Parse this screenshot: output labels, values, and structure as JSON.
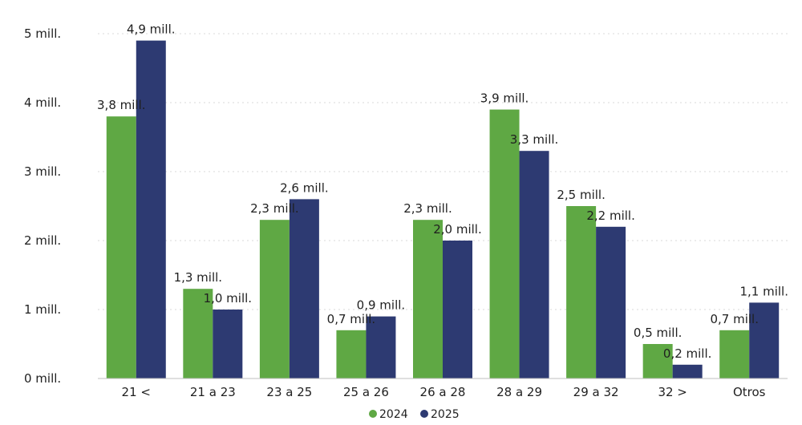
{
  "chart_data": {
    "type": "bar",
    "categories": [
      "21 <",
      "21 a 23",
      "23 a 25",
      "25 a 26",
      "26 a 28",
      "28 a 29",
      "29 a 32",
      "32 >",
      "Otros"
    ],
    "series": [
      {
        "name": "2024",
        "color": "#5fa844",
        "values": [
          3.8,
          1.3,
          2.3,
          0.7,
          2.3,
          3.9,
          2.5,
          0.5,
          0.7
        ],
        "labels": [
          "3,8 mill.",
          "1,3 mill.",
          "2,3 mill.",
          "0,7 mill.",
          "2,3 mill.",
          "3,9 mill.",
          "2,5 mill.",
          "0,5 mill.",
          "0,7 mill."
        ]
      },
      {
        "name": "2025",
        "color": "#2d3a72",
        "values": [
          4.9,
          1.0,
          2.6,
          0.9,
          2.0,
          3.3,
          2.2,
          0.2,
          1.1
        ],
        "labels": [
          "4,9 mill.",
          "1,0 mill.",
          "2,6 mill.",
          "0,9 mill.",
          "2,0 mill.",
          "3,3 mill.",
          "2,2 mill.",
          "0,2 mill.",
          "1,1 mill."
        ]
      }
    ],
    "yticks": [
      0,
      1,
      2,
      3,
      4,
      5
    ],
    "ytick_labels": [
      "0 mill.",
      "1 mill.",
      "2 mill.",
      "3 mill.",
      "4 mill.",
      "5 mill."
    ],
    "ylim": [
      0,
      5
    ],
    "grid": true,
    "legend_position": "bottom-center",
    "title": "",
    "xlabel": "",
    "ylabel": ""
  }
}
